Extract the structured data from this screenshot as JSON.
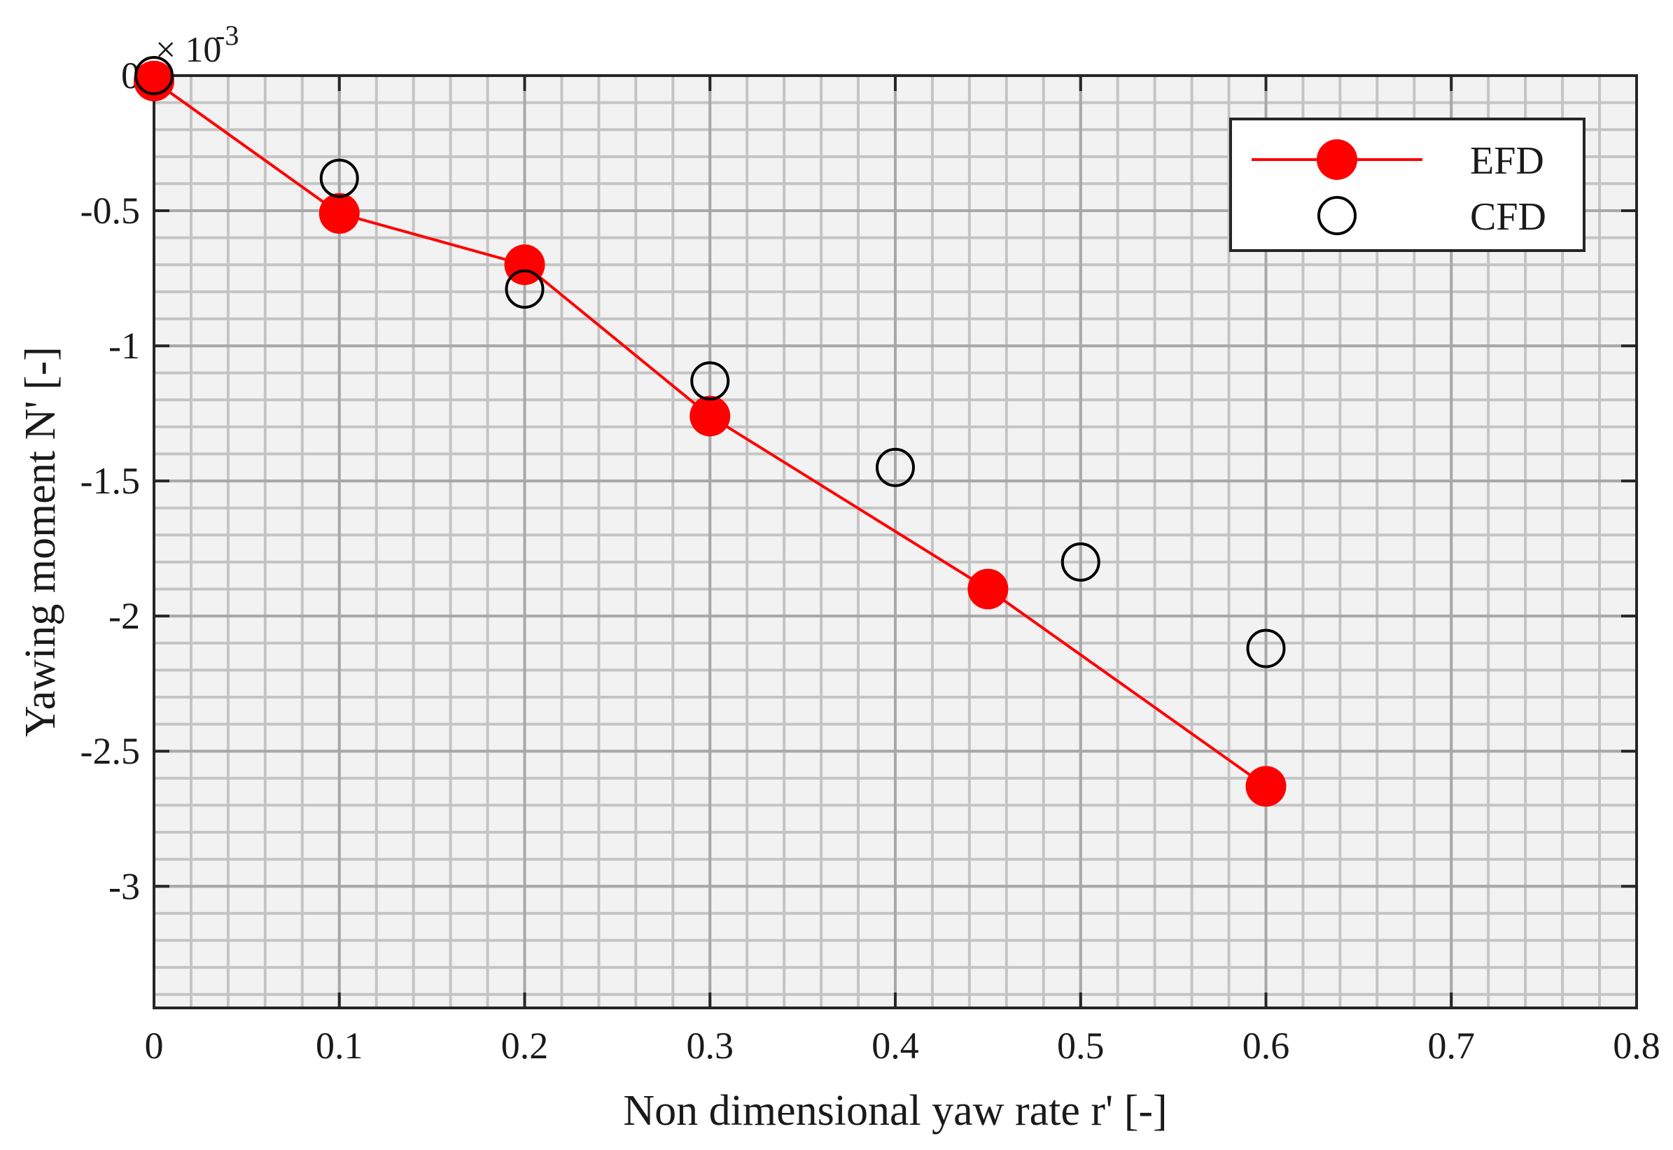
{
  "chart_data": {
    "type": "line",
    "xlabel": "Non dimensional yaw rate r' [-]",
    "ylabel": "Yawing moment N' [-]",
    "y_multiplier_label": "× 10",
    "y_multiplier_exponent": "-3",
    "xlim": [
      0,
      0.8
    ],
    "ylim": [
      -3.45,
      0
    ],
    "y_scale_factor": 0.001,
    "x_ticks": [
      0,
      0.1,
      0.2,
      0.3,
      0.4,
      0.5,
      0.6,
      0.7,
      0.8
    ],
    "x_tick_labels": [
      "0",
      "0.1",
      "0.2",
      "0.3",
      "0.4",
      "0.5",
      "0.6",
      "0.7",
      "0.8"
    ],
    "y_ticks": [
      0,
      -0.5,
      -1,
      -1.5,
      -2,
      -2.5,
      -3
    ],
    "y_tick_labels": [
      "0",
      "-0.5",
      "-1",
      "-1.5",
      "-2",
      "-2.5",
      "-3"
    ],
    "grid": "major and minor",
    "legend_position": "top-right",
    "series": [
      {
        "name": "EFD",
        "style": "line with filled markers",
        "color": "#ff0000",
        "x": [
          0,
          0.1,
          0.2,
          0.3,
          0.45,
          0.6
        ],
        "y": [
          -0.02,
          -0.51,
          -0.7,
          -1.26,
          -1.9,
          -2.63
        ]
      },
      {
        "name": "CFD",
        "style": "open markers",
        "color": "#000000",
        "x": [
          0,
          0.1,
          0.2,
          0.3,
          0.4,
          0.5,
          0.6
        ],
        "y": [
          0,
          -0.38,
          -0.79,
          -1.13,
          -1.45,
          -1.8,
          -2.12
        ]
      }
    ]
  }
}
